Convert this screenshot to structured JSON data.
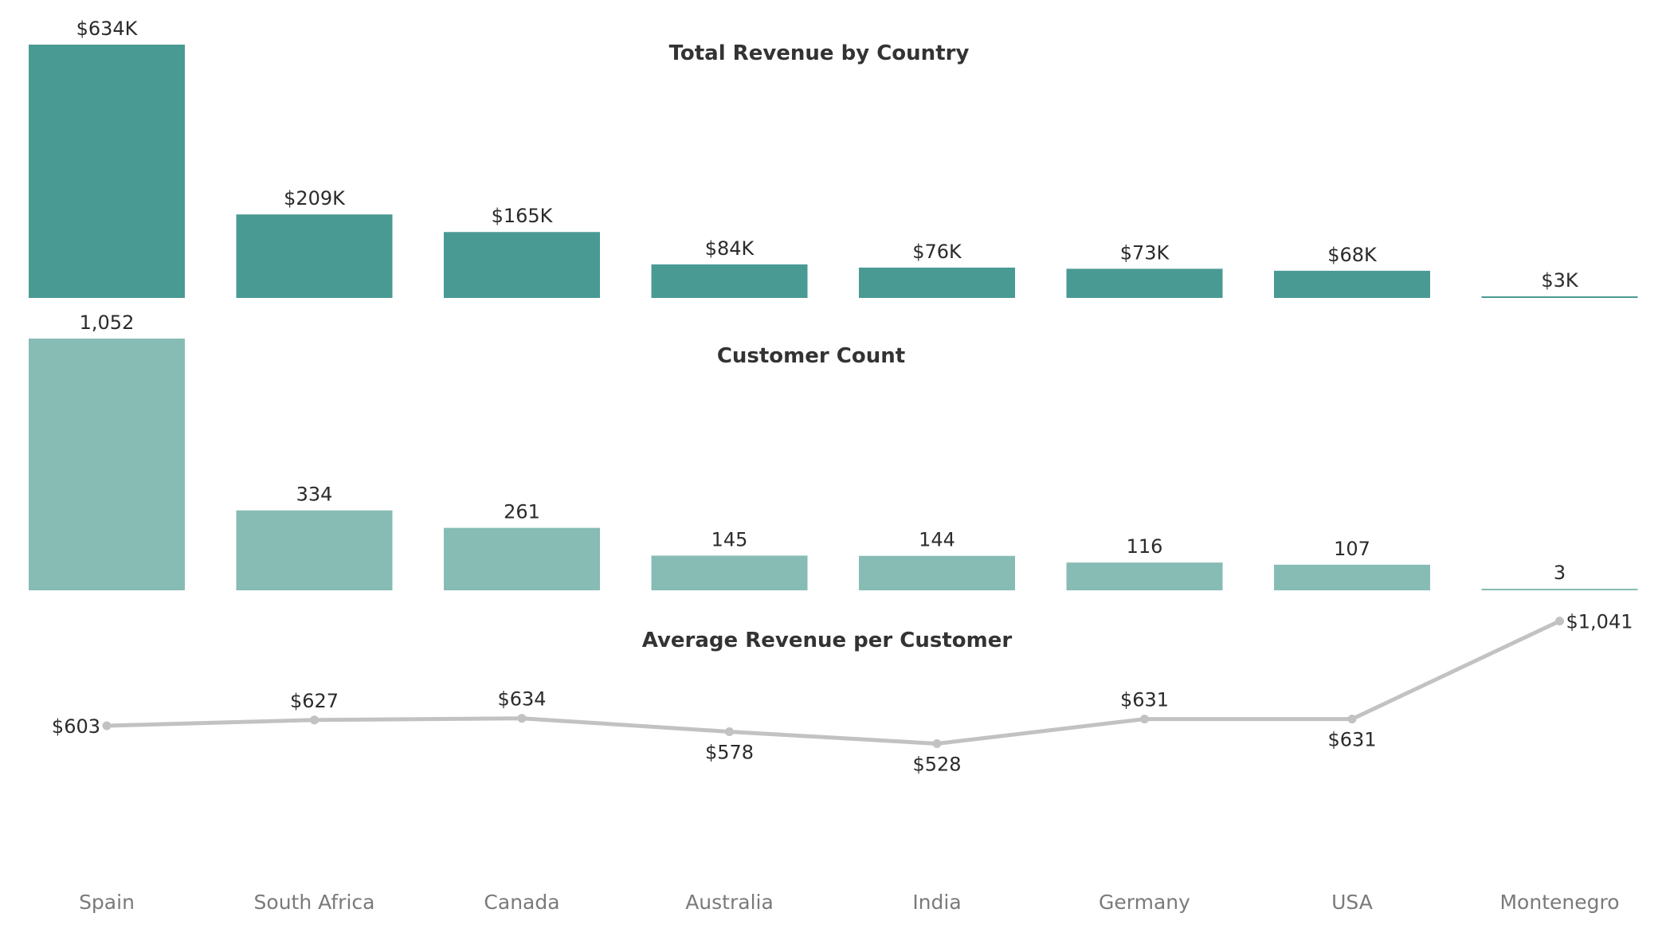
{
  "chart_data": [
    {
      "type": "bar",
      "title": "Total Revenue by Country",
      "categories": [
        "Spain",
        "South Africa",
        "Canada",
        "Australia",
        "India",
        "Germany",
        "USA",
        "Montenegro"
      ],
      "values": [
        634,
        209,
        165,
        84,
        76,
        73,
        68,
        3
      ],
      "unit": "$K",
      "data_labels": [
        "$634K",
        "$209K",
        "$165K",
        "$84K",
        "$76K",
        "$73K",
        "$68K",
        "$3K"
      ],
      "color": "#4a9a94"
    },
    {
      "type": "bar",
      "title": "Customer Count",
      "categories": [
        "Spain",
        "South Africa",
        "Canada",
        "Australia",
        "India",
        "Germany",
        "USA",
        "Montenegro"
      ],
      "values": [
        1052,
        334,
        261,
        145,
        144,
        116,
        107,
        3
      ],
      "data_labels": [
        "1,052",
        "334",
        "261",
        "145",
        "144",
        "116",
        "107",
        "3"
      ],
      "color": "#87bcb5"
    },
    {
      "type": "line",
      "title": "Average Revenue per Customer",
      "categories": [
        "Spain",
        "South Africa",
        "Canada",
        "Australia",
        "India",
        "Germany",
        "USA",
        "Montenegro"
      ],
      "values": [
        603,
        627,
        634,
        578,
        528,
        631,
        631,
        1041
      ],
      "data_labels": [
        "$603",
        "$627",
        "$634",
        "$578",
        "$528",
        "$631",
        "$631",
        "$1,041"
      ],
      "color": "#c2c2c2"
    }
  ],
  "x_axis": {
    "labels": [
      "Spain",
      "South Africa",
      "Canada",
      "Australia",
      "India",
      "Germany",
      "USA",
      "Montenegro"
    ]
  }
}
